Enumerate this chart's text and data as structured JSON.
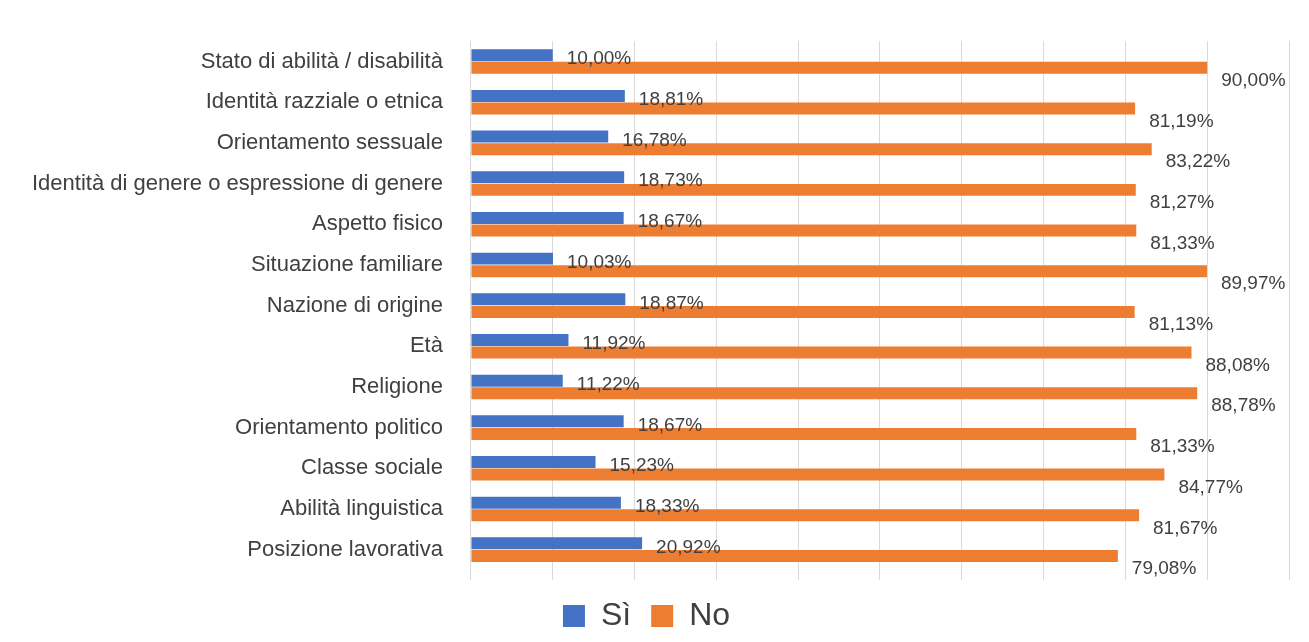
{
  "chart_data": {
    "type": "bar",
    "orientation": "horizontal",
    "categories": [
      "Stato di abilità / disabilità",
      "Identità razziale o etnica",
      "Orientamento sessuale",
      "Identità di genere o espressione di genere",
      "Aspetto fisico",
      "Situazione familiare",
      "Nazione di origine",
      "Età",
      "Religione",
      "Orientamento politico",
      "Classe sociale",
      "Abilità linguistica",
      "Posizione lavorativa"
    ],
    "series": [
      {
        "name": "Sì",
        "color": "#4472c4",
        "values": [
          10.0,
          18.81,
          16.78,
          18.73,
          18.67,
          10.03,
          18.87,
          11.92,
          11.22,
          18.67,
          15.23,
          18.33,
          20.92
        ],
        "value_labels": [
          "10,00%",
          "18,81%",
          "16,78%",
          "18,73%",
          "18,67%",
          "10,03%",
          "18,87%",
          "11,92%",
          "11,22%",
          "18,67%",
          "15,23%",
          "18,33%",
          "20,92%"
        ]
      },
      {
        "name": "No",
        "color": "#ed7d31",
        "values": [
          90.0,
          81.19,
          83.22,
          81.27,
          81.33,
          89.97,
          81.13,
          88.08,
          88.78,
          81.33,
          84.77,
          81.67,
          79.08
        ],
        "value_labels": [
          "90,00%",
          "81,19%",
          "83,22%",
          "81,27%",
          "81,33%",
          "89,97%",
          "81,13%",
          "88,08%",
          "88,78%",
          "81,33%",
          "84,77%",
          "81,67%",
          "79,08%"
        ]
      }
    ],
    "xlim": [
      0,
      100
    ],
    "xticks": [
      {
        "value": 0,
        "label": null
      },
      {
        "value": 10,
        "label": null
      },
      {
        "value": 20,
        "label": null
      },
      {
        "value": 30,
        "label": null
      },
      {
        "value": 40,
        "label": null
      },
      {
        "value": 50,
        "label": null
      },
      {
        "value": 60,
        "label": null
      },
      {
        "value": 70,
        "label": null
      },
      {
        "value": 80,
        "label": null
      },
      {
        "value": 90,
        "label": null
      },
      {
        "value": 100,
        "label": null
      }
    ],
    "grid": "x",
    "legend": "bottom",
    "tick_labels": "y"
  }
}
